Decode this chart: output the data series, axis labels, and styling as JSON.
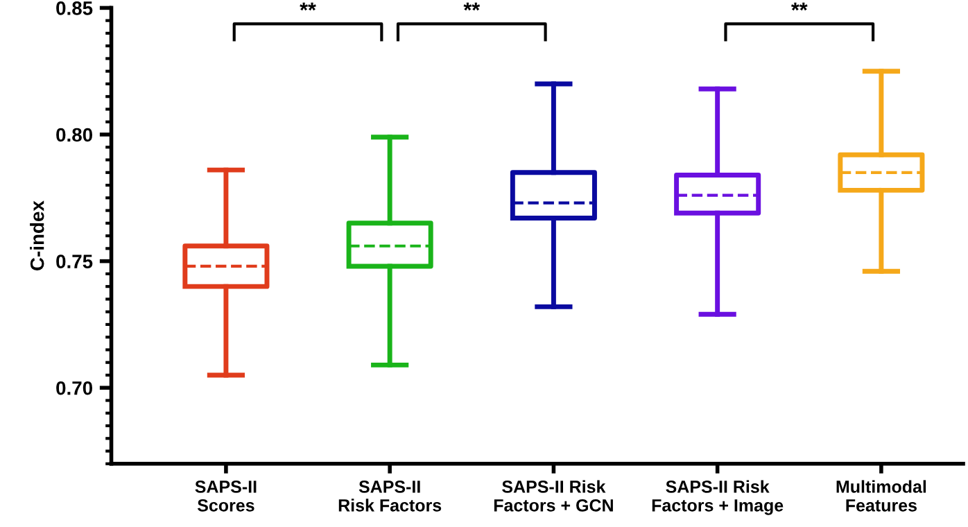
{
  "chart_data": {
    "type": "box",
    "ylabel": "C-index",
    "categories": [
      "SAPS-II\nScores",
      "SAPS-II\nRisk Factors",
      "SAPS-II Risk\nFactors + GCN",
      "SAPS-II Risk\nFactors + Image",
      "Multimodal\nFeatures"
    ],
    "colors": [
      "#e03c1c",
      "#1ab41a",
      "#0a0aa0",
      "#6a10e0",
      "#f5a81a"
    ],
    "boxes": [
      {
        "low": 0.705,
        "q1": 0.74,
        "median": 0.748,
        "q3": 0.756,
        "high": 0.786
      },
      {
        "low": 0.709,
        "q1": 0.748,
        "median": 0.756,
        "q3": 0.765,
        "high": 0.799
      },
      {
        "low": 0.732,
        "q1": 0.767,
        "median": 0.773,
        "q3": 0.785,
        "high": 0.82
      },
      {
        "low": 0.729,
        "q1": 0.769,
        "median": 0.776,
        "q3": 0.784,
        "high": 0.818
      },
      {
        "low": 0.746,
        "q1": 0.778,
        "median": 0.785,
        "q3": 0.792,
        "high": 0.825
      }
    ],
    "ylim": [
      0.67,
      0.85
    ],
    "yticks": [
      {
        "value": 0.7,
        "label": "0.70"
      },
      {
        "value": 0.75,
        "label": "0.75"
      },
      {
        "value": 0.8,
        "label": "0.80"
      },
      {
        "value": 0.85,
        "label": "0.85"
      }
    ],
    "grid": false,
    "annotations": [
      "**",
      "**",
      "**"
    ]
  }
}
